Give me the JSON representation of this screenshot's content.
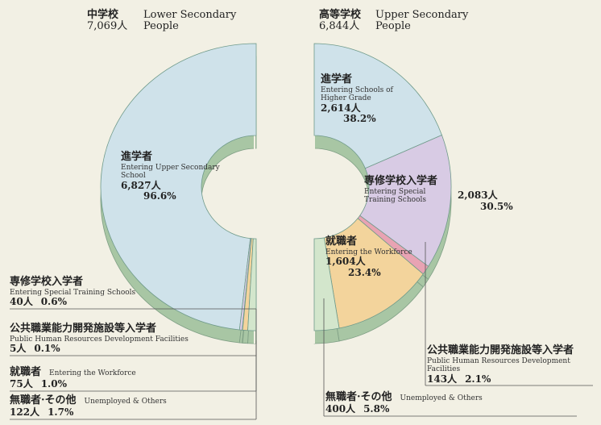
{
  "chart_data": [
    {
      "type": "pie",
      "title": "中学校",
      "subtitle": "Lower Secondary",
      "total_label": "7,069人",
      "total_unit": "People",
      "categories": [
        "進学者",
        "専修学校入学者",
        "公共職業能力開発施設等入学者",
        "就職者",
        "無職者·その他"
      ],
      "categories_en": [
        "Entering Upper Secondary School",
        "Entering Special Training Schools",
        "Public Human Resources Development Facilities",
        "Entering the Workforce",
        "Unemployed & Others"
      ],
      "values": [
        6827,
        40,
        5,
        75,
        122
      ],
      "value_labels": [
        "6,827人",
        "40人",
        "5人",
        "75人",
        "122人"
      ],
      "percent_labels": [
        "96.6%",
        "0.6%",
        "0.1%",
        "1.0%",
        "1.7%"
      ],
      "colors": [
        "#cfe2ea",
        "#d8cbe4",
        "#e8a3b3",
        "#f3d49c",
        "#d3e6cc"
      ]
    },
    {
      "type": "pie",
      "title": "高等学校",
      "subtitle": "Upper Secondary",
      "total_label": "6,844人",
      "total_unit": "People",
      "categories": [
        "進学者",
        "専修学校入学者",
        "公共職業能力開発施設等入学者",
        "就職者",
        "無職者·その他"
      ],
      "categories_en": [
        "Entering Schools of Higher Grade",
        "Entering Special Training Schools",
        "Public Human Resources Development Facilities",
        "Entering the Workforce",
        "Unemployed & Others"
      ],
      "values": [
        2614,
        2083,
        143,
        1604,
        400
      ],
      "value_labels": [
        "2,614人",
        "2,083人",
        "143人",
        "1,604人",
        "400人"
      ],
      "percent_labels": [
        "38.2%",
        "30.5%",
        "2.1%",
        "23.4%",
        "5.8%"
      ],
      "colors": [
        "#cfe2ea",
        "#d8cbe4",
        "#e8a3b3",
        "#f3d49c",
        "#d3e6cc"
      ]
    }
  ]
}
